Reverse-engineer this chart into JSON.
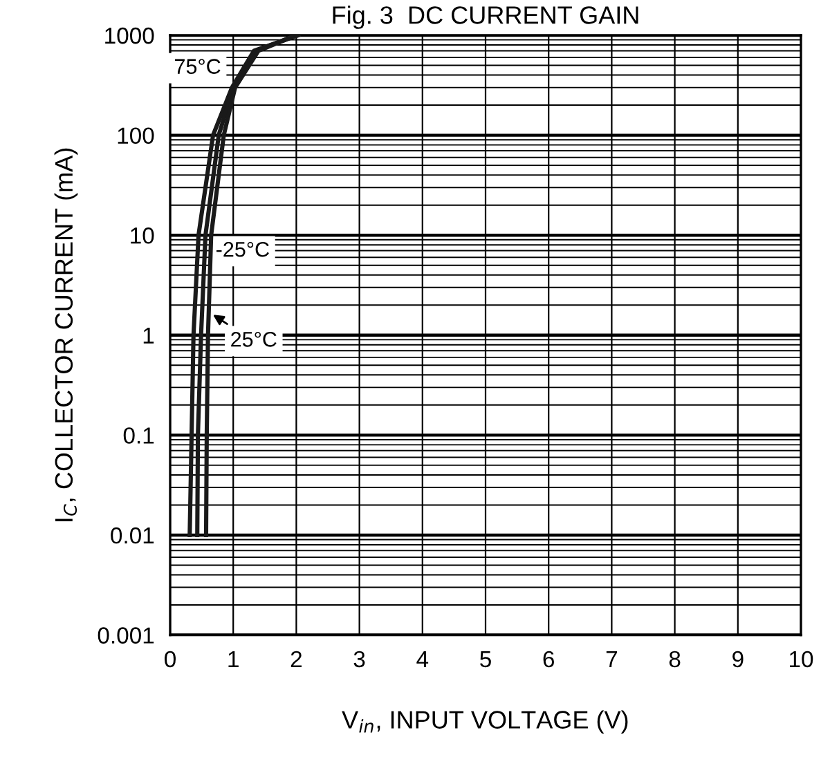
{
  "chart_data": {
    "type": "line",
    "title": "Fig. 3  DC CURRENT GAIN",
    "xlabel": "V$_{in}$, INPUT VOLTAGE (V)",
    "ylabel": "I$_{C}$, COLLECTOR CURRENT (mA)",
    "log": "y",
    "grid": true,
    "legend": false,
    "line_style": "solid",
    "marker": "none",
    "xlim": [
      0,
      10
    ],
    "xticks": [
      0,
      1,
      2,
      3,
      4,
      5,
      6,
      7,
      8,
      9,
      10
    ],
    "ylim": [
      0.001,
      1000
    ],
    "yticks": [
      0.001,
      0.01,
      0.1,
      1,
      10,
      100,
      1000
    ],
    "series": [
      {
        "name": "75°C",
        "color": "#1a1a1a",
        "x": [
          0.31,
          0.34,
          0.37,
          0.45,
          0.68,
          0.98,
          1.33,
          2.03
        ],
        "values": [
          0.01,
          0.1,
          1,
          10,
          100,
          300,
          700,
          1000
        ]
      },
      {
        "name": "-25°C",
        "color": "#1a1a1a",
        "x": [
          0.43,
          0.44,
          0.49,
          0.56,
          0.77,
          1.0,
          1.36,
          2.0
        ],
        "values": [
          0.01,
          0.1,
          1,
          10,
          100,
          300,
          700,
          1000
        ]
      },
      {
        "name": "25°C",
        "color": "#1a1a1a",
        "x": [
          0.57,
          0.58,
          0.6,
          0.65,
          0.85,
          1.03,
          1.4,
          2.0
        ],
        "values": [
          0.01,
          0.1,
          1,
          10,
          100,
          300,
          700,
          1000
        ]
      }
    ]
  }
}
